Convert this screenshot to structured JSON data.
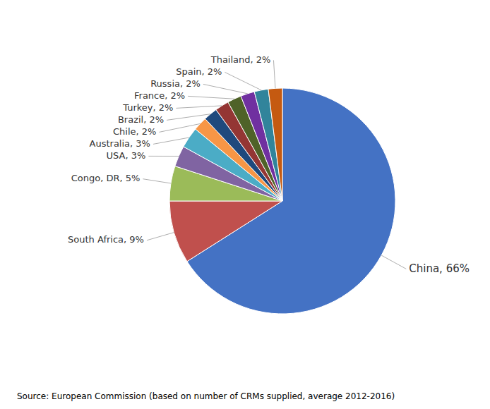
{
  "chart_data": {
    "type": "pie",
    "categories": [
      "China",
      "South Africa",
      "Congo, DR",
      "USA",
      "Australia",
      "Chile",
      "Brazil",
      "Turkey",
      "France",
      "Russia",
      "Spain",
      "Thailand"
    ],
    "values": [
      66,
      9,
      5,
      3,
      3,
      2,
      2,
      2,
      2,
      2,
      2,
      2
    ],
    "value_labels": [
      "China, 66%",
      "South Africa, 9%",
      "Congo, DR, 5%",
      "USA, 3%",
      "Australia, 3%",
      "Chile, 2%",
      "Brazil, 2%",
      "Turkey, 2%",
      "France, 2%",
      "Russia, 2%",
      "Spain, 2%",
      "Thailand, 2%"
    ],
    "colors": [
      "#4472C4",
      "#C0504D",
      "#9BBB59",
      "#8064A2",
      "#4BACC6",
      "#F79646",
      "#1F497D",
      "#943634",
      "#4F6228",
      "#7030A0",
      "#31849B",
      "#C55A11"
    ],
    "data_labels": true,
    "annotations": [
      "Source: European Commission (based on number of CRMs supplied, average 2012-2016)"
    ]
  }
}
